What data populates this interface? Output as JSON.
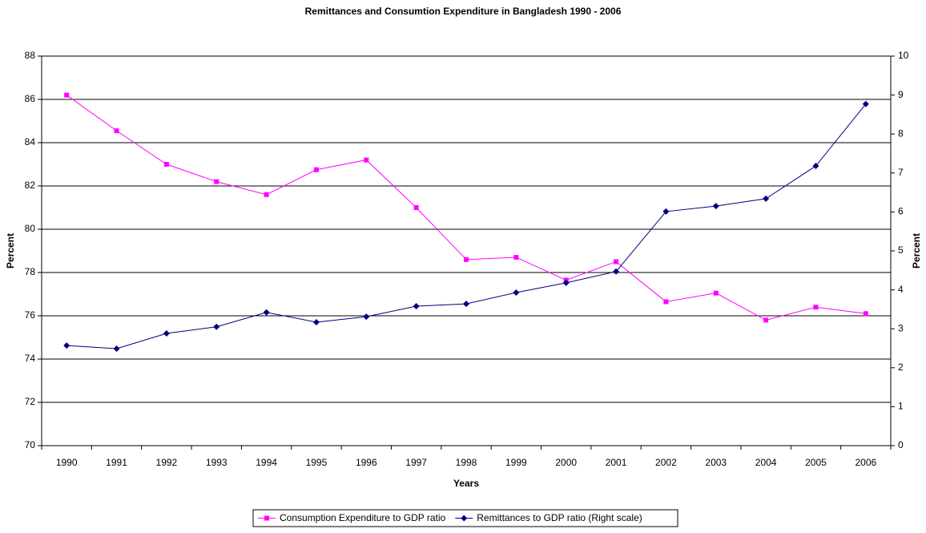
{
  "chart_data": {
    "type": "line",
    "title": "Remittances and Consumtion Expenditure in Bangladesh 1990 - 2006",
    "x_label": "Years",
    "y_label": "Percent",
    "y2_label": "Percent",
    "categories": [
      "1990",
      "1991",
      "1992",
      "1993",
      "1994",
      "1995",
      "1996",
      "1997",
      "1998",
      "1999",
      "2000",
      "2001",
      "2002",
      "2003",
      "2004",
      "2005",
      "2006"
    ],
    "series": [
      {
        "name": "Consumption Expenditure to GDP ratio",
        "color": "#ff00ff",
        "marker": "square",
        "values": [
          86.2,
          84.55,
          83.0,
          82.2,
          81.6,
          82.75,
          83.2,
          81.0,
          78.6,
          78.7,
          77.65,
          78.5,
          76.65,
          77.05,
          75.8,
          76.4,
          76.1
        ]
      },
      {
        "name": "Remittances to GDP ratio (Right scale)",
        "color": "#000080",
        "marker": "diamond",
        "axis": "y2",
        "values": [
          2.57,
          2.49,
          2.88,
          3.05,
          3.42,
          3.17,
          3.31,
          3.58,
          3.64,
          3.93,
          4.18,
          4.47,
          6.01,
          6.15,
          6.34,
          7.18,
          8.77
        ]
      }
    ],
    "ylim": [
      70,
      88
    ],
    "yticks": [
      70,
      72,
      74,
      76,
      78,
      80,
      82,
      84,
      86,
      88
    ],
    "y2lim": [
      0,
      10
    ],
    "y2ticks": [
      0,
      1,
      2,
      3,
      4,
      5,
      6,
      7,
      8,
      9,
      10
    ],
    "grid": true,
    "legend": "bottom"
  }
}
